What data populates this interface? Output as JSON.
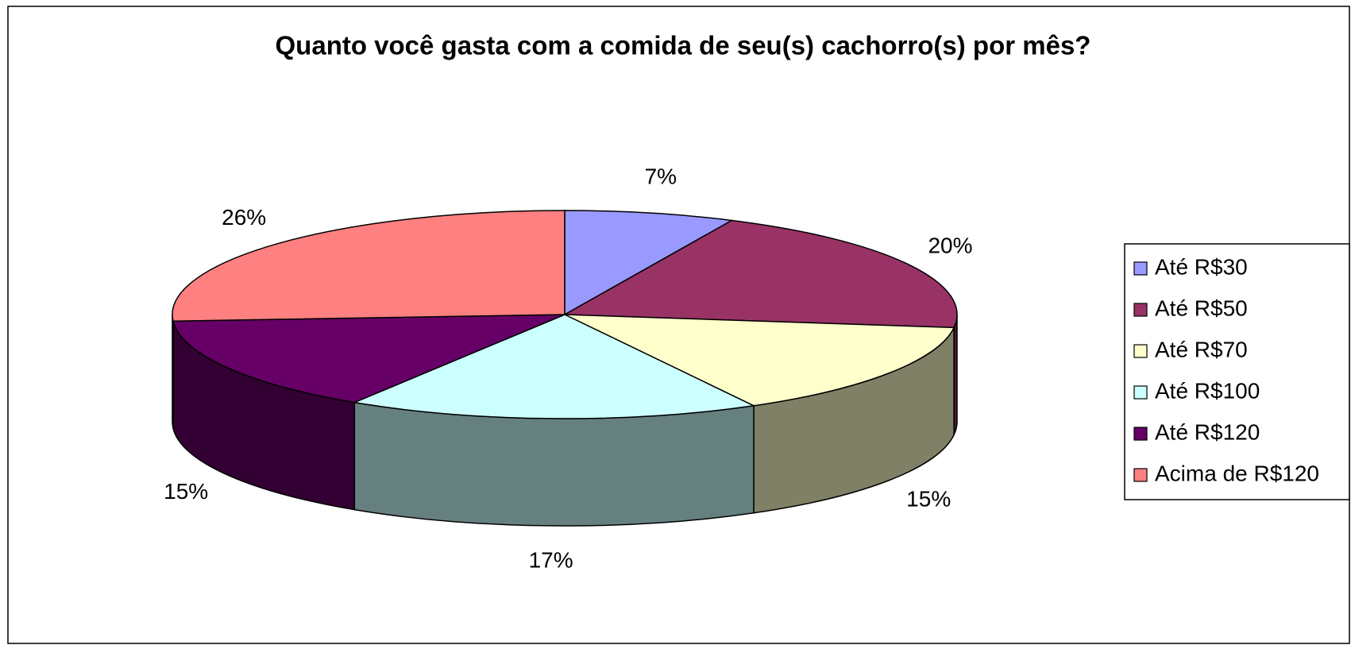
{
  "chart_data": {
    "type": "pie3d",
    "title": "Quanto você gasta com a comida de seu(s) cachorro(s) por mês?",
    "categories": [
      "Até R$30",
      "Até R$50",
      "Até R$70",
      "Até R$100",
      "Até R$120",
      "Acima de R$120"
    ],
    "values": [
      7,
      20,
      15,
      17,
      15,
      26
    ],
    "value_labels": [
      "7%",
      "20%",
      "15%",
      "17%",
      "15%",
      "26%"
    ],
    "colors": [
      "#9999ff",
      "#993366",
      "#ffffcc",
      "#ccffff",
      "#660066",
      "#ff8080"
    ],
    "legend": "right"
  }
}
